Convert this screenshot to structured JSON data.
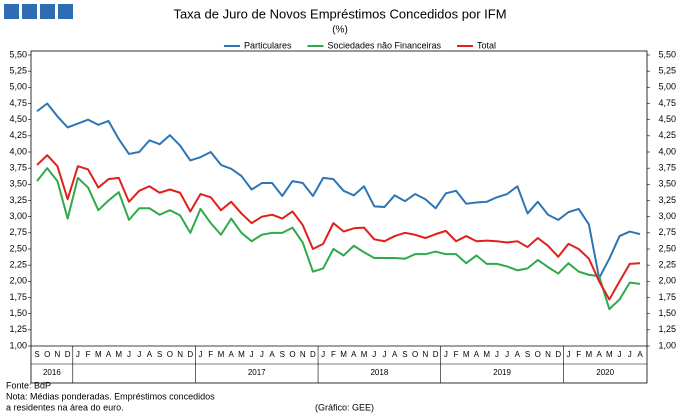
{
  "chart_data": {
    "type": "line",
    "title": "Taxa de Juro de Novos Empréstimos Concedidos por IFM",
    "subtitle": "(%)",
    "categories": [
      "S",
      "O",
      "N",
      "D",
      "J",
      "F",
      "M",
      "A",
      "M",
      "J",
      "J",
      "A",
      "S",
      "O",
      "N",
      "D",
      "J",
      "F",
      "M",
      "A",
      "M",
      "J",
      "J",
      "A",
      "S",
      "O",
      "N",
      "D",
      "J",
      "F",
      "M",
      "A",
      "M",
      "J",
      "J",
      "A",
      "S",
      "O",
      "N",
      "D",
      "J",
      "F",
      "M",
      "A",
      "M",
      "J",
      "J",
      "A",
      "S",
      "O",
      "N",
      "D",
      "J",
      "F",
      "M",
      "A",
      "M",
      "J",
      "J",
      "A"
    ],
    "year_labels": [
      "2016",
      null,
      "2017",
      "2018",
      "2019",
      "2020"
    ],
    "series": [
      {
        "name": "Particulares",
        "color": "#2e75b6",
        "values": [
          4.63,
          4.75,
          4.55,
          4.38,
          4.44,
          4.5,
          4.42,
          4.48,
          4.2,
          3.97,
          4.0,
          4.18,
          4.12,
          4.26,
          4.1,
          3.87,
          3.92,
          4.0,
          3.8,
          3.74,
          3.63,
          3.42,
          3.52,
          3.52,
          3.32,
          3.55,
          3.52,
          3.32,
          3.6,
          3.58,
          3.4,
          3.33,
          3.47,
          3.16,
          3.15,
          3.33,
          3.24,
          3.35,
          3.27,
          3.13,
          3.36,
          3.4,
          3.2,
          3.22,
          3.23,
          3.3,
          3.35,
          3.47,
          3.05,
          3.23,
          3.03,
          2.95,
          3.07,
          3.12,
          2.88,
          2.05,
          2.35,
          2.7,
          2.77,
          2.73
        ]
      },
      {
        "name": "Sociedades não Financeiras",
        "color": "#2eaa4a",
        "values": [
          3.55,
          3.75,
          3.55,
          2.97,
          3.6,
          3.45,
          3.1,
          3.25,
          3.38,
          2.95,
          3.13,
          3.13,
          3.03,
          3.1,
          3.02,
          2.75,
          3.12,
          2.9,
          2.72,
          2.97,
          2.75,
          2.62,
          2.72,
          2.75,
          2.75,
          2.83,
          2.6,
          2.15,
          2.2,
          2.5,
          2.4,
          2.55,
          2.45,
          2.36,
          2.36,
          2.36,
          2.35,
          2.42,
          2.42,
          2.46,
          2.42,
          2.42,
          2.28,
          2.4,
          2.27,
          2.27,
          2.23,
          2.17,
          2.2,
          2.33,
          2.22,
          2.12,
          2.28,
          2.15,
          2.1,
          2.08,
          1.57,
          1.72,
          1.98,
          1.96
        ]
      },
      {
        "name": "Total",
        "color": "#e0201b",
        "values": [
          3.8,
          3.95,
          3.78,
          3.27,
          3.78,
          3.73,
          3.45,
          3.58,
          3.6,
          3.23,
          3.4,
          3.47,
          3.37,
          3.42,
          3.37,
          3.08,
          3.35,
          3.3,
          3.1,
          3.23,
          3.05,
          2.9,
          3.0,
          3.03,
          2.97,
          3.08,
          2.87,
          2.5,
          2.58,
          2.9,
          2.77,
          2.82,
          2.83,
          2.65,
          2.62,
          2.7,
          2.75,
          2.72,
          2.67,
          2.73,
          2.78,
          2.62,
          2.7,
          2.62,
          2.63,
          2.62,
          2.6,
          2.62,
          2.53,
          2.67,
          2.55,
          2.38,
          2.58,
          2.5,
          2.35,
          2.0,
          1.72,
          2.0,
          2.27,
          2.28
        ]
      }
    ],
    "ylim": [
      1,
      5.5
    ],
    "yticks": [
      {
        "value": 1,
        "label": "1,00"
      },
      {
        "value": 1.25,
        "label": "1,25"
      },
      {
        "value": 1.5,
        "label": "1,50"
      },
      {
        "value": 1.75,
        "label": "1,75"
      },
      {
        "value": 2,
        "label": "2,00"
      },
      {
        "value": 2.25,
        "label": "2,25"
      },
      {
        "value": 2.5,
        "label": "2,50"
      },
      {
        "value": 2.75,
        "label": "2,75"
      },
      {
        "value": 3,
        "label": "3,00"
      },
      {
        "value": 3.25,
        "label": "3,25"
      },
      {
        "value": 3.5,
        "label": "3,50"
      },
      {
        "value": 3.75,
        "label": "3,75"
      },
      {
        "value": 4,
        "label": "4,00"
      },
      {
        "value": 4.25,
        "label": "4,25"
      },
      {
        "value": 4.5,
        "label": "4,50"
      },
      {
        "value": 4.75,
        "label": "4,75"
      },
      {
        "value": 5,
        "label": "5,00"
      },
      {
        "value": 5.25,
        "label": "5,25"
      },
      {
        "value": 5.5,
        "label": "5,50"
      }
    ],
    "y2lim": [
      1,
      5.5
    ],
    "y2ticks": [
      {
        "value": 1,
        "label": "1,00"
      },
      {
        "value": 1.25,
        "label": "1,25"
      },
      {
        "value": 1.5,
        "label": "1,50"
      },
      {
        "value": 1.75,
        "label": "1,75"
      },
      {
        "value": 2,
        "label": "2,00"
      },
      {
        "value": 2.25,
        "label": "2,25"
      },
      {
        "value": 2.5,
        "label": "2,50"
      },
      {
        "value": 2.75,
        "label": "2,75"
      },
      {
        "value": 3,
        "label": "3,00"
      },
      {
        "value": 3.25,
        "label": "3,25"
      },
      {
        "value": 3.5,
        "label": "3,50"
      },
      {
        "value": 3.75,
        "label": "3,75"
      },
      {
        "value": 4,
        "label": "4,00"
      },
      {
        "value": 4.25,
        "label": "4,25"
      },
      {
        "value": 4.5,
        "label": "4,50"
      },
      {
        "value": 4.75,
        "label": "4,75"
      },
      {
        "value": 5,
        "label": "5,00"
      },
      {
        "value": 5.25,
        "label": "5,25"
      },
      {
        "value": 5.5,
        "label": "5,50"
      }
    ],
    "legend": "top",
    "notes": [
      "Fonte: BdP",
      "Nota: Médias ponderadas.  Empréstimos concedidos",
      "a residentes na área do euro."
    ],
    "credit": "(Gráfico: GEE)"
  }
}
